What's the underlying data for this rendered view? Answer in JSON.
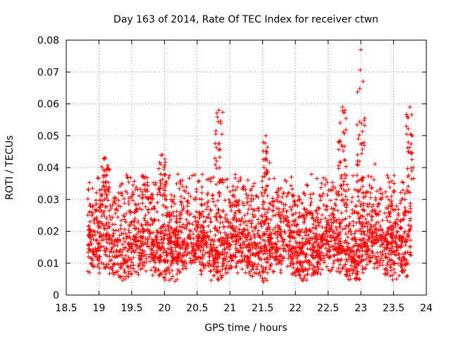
{
  "chart_data": {
    "type": "scatter",
    "title": "Day 163 of 2014, Rate Of TEC Index for receiver ctwn",
    "xlabel": "GPS time / hours",
    "ylabel": "ROTI / TECUs",
    "xlim": [
      18.5,
      24
    ],
    "ylim": [
      0,
      0.08
    ],
    "xticks": [
      "18.5",
      "19",
      "19.5",
      "20",
      "20.5",
      "21",
      "21.5",
      "22",
      "22.5",
      "23",
      "23.5",
      "24"
    ],
    "yticks": [
      "0",
      "0.01",
      "0.02",
      "0.03",
      "0.04",
      "0.05",
      "0.06",
      "0.07",
      "0.08"
    ],
    "marker": "+",
    "grid": true,
    "color": "#ff0000",
    "series": [
      {
        "name": "ROTI",
        "x_range": [
          18.83,
          23.77
        ],
        "base_level": 0.012,
        "peaks": [
          {
            "x": 19.1,
            "y": 0.043
          },
          {
            "x": 19.97,
            "y": 0.044
          },
          {
            "x": 20.83,
            "y": 0.058
          },
          {
            "x": 21.55,
            "y": 0.05
          },
          {
            "x": 22.72,
            "y": 0.059
          },
          {
            "x": 23.0,
            "y": 0.077
          },
          {
            "x": 23.75,
            "y": 0.059
          }
        ]
      }
    ]
  }
}
